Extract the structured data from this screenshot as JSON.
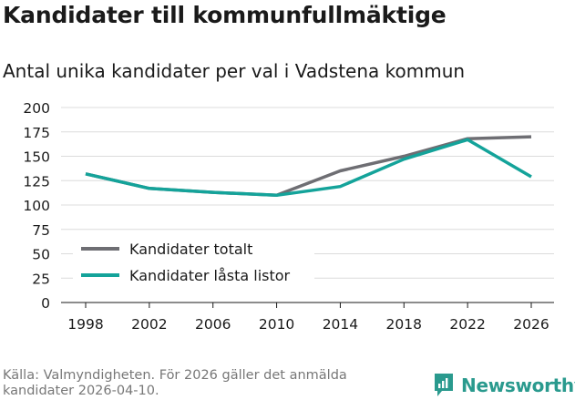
{
  "title": "Kandidater till kommunfullmäktige",
  "subtitle": "Antal unika kandidater per val i Vadstena kommun",
  "source": "Källa: Valmyndigheten. För 2026 gäller det anmälda kandidater 2026-04-10.",
  "brand": {
    "name": "Newsworthy",
    "icon": "newsworthy-logo-icon",
    "color": "#2a9a8e"
  },
  "chart_data": {
    "type": "line",
    "title": "Kandidater till kommunfullmäktige",
    "subtitle": "Antal unika kandidater per val i Vadstena kommun",
    "xlabel": "",
    "ylabel": "",
    "x": [
      "1998",
      "2002",
      "2006",
      "2010",
      "2014",
      "2018",
      "2022",
      "2026"
    ],
    "ylim": [
      0,
      200
    ],
    "yticks": [
      0,
      25,
      50,
      75,
      100,
      125,
      150,
      175,
      200
    ],
    "grid": true,
    "legend_position": "bottom-left",
    "series": [
      {
        "name": "Kandidater totalt",
        "color": "#6e6e73",
        "values": [
          132,
          117,
          113,
          110,
          135,
          150,
          168,
          170
        ]
      },
      {
        "name": "Kandidater låsta listor",
        "color": "#14a39a",
        "values": [
          132,
          117,
          113,
          110,
          119,
          147,
          167,
          129
        ]
      }
    ]
  }
}
